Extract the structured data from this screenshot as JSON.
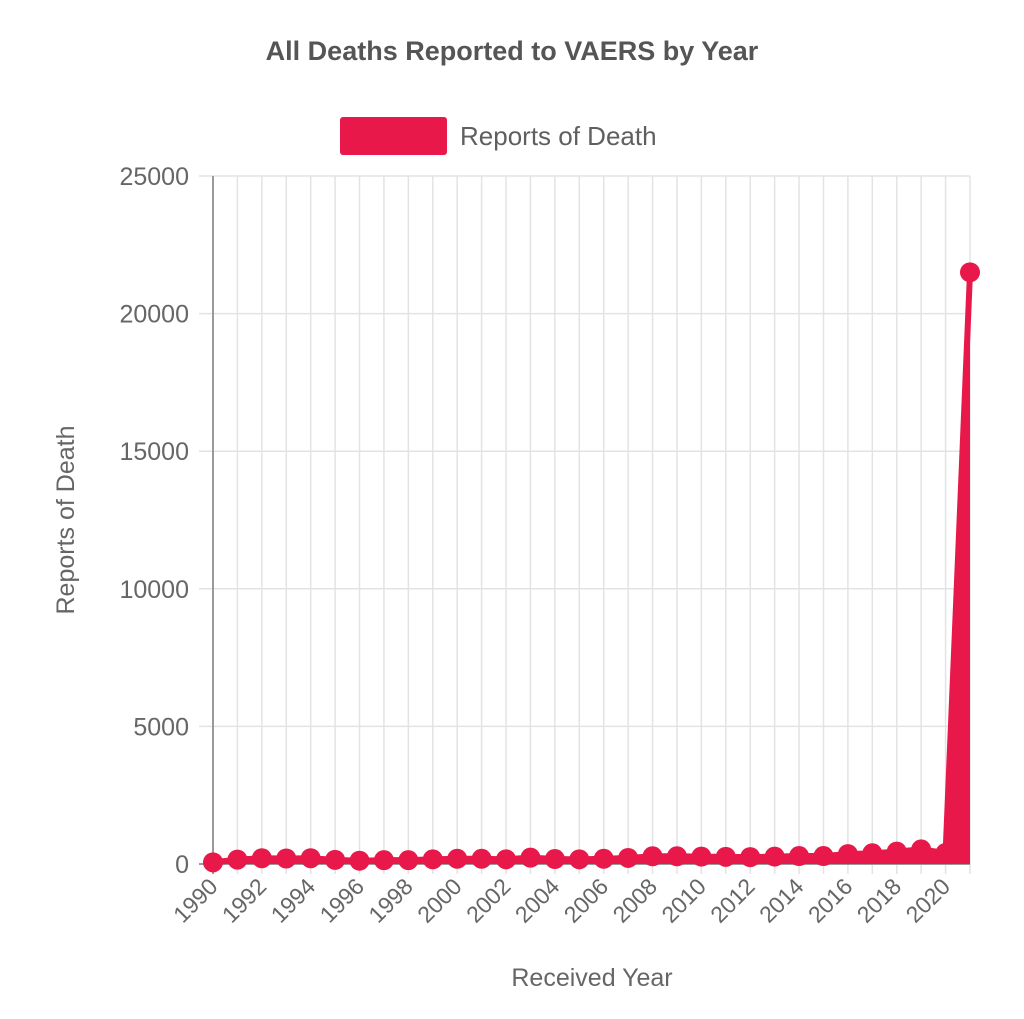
{
  "chart_data": {
    "type": "line",
    "title": "All Deaths Reported to VAERS by Year",
    "xlabel": "Received Year",
    "ylabel": "Reports of Death",
    "x": [
      1990,
      1991,
      1992,
      1993,
      1994,
      1995,
      1996,
      1997,
      1998,
      1999,
      2000,
      2001,
      2002,
      2003,
      2004,
      2005,
      2006,
      2007,
      2008,
      2009,
      2010,
      2011,
      2012,
      2013,
      2014,
      2015,
      2016,
      2017,
      2018,
      2019,
      2020,
      2021
    ],
    "xticks": [
      1990,
      1992,
      1994,
      1996,
      1998,
      2000,
      2002,
      2004,
      2006,
      2008,
      2010,
      2012,
      2014,
      2016,
      2018,
      2020
    ],
    "yticks": [
      0,
      5000,
      10000,
      15000,
      20000,
      25000
    ],
    "ylim": [
      0,
      25000
    ],
    "series": [
      {
        "name": "Reports of Death",
        "color": "#e8194a",
        "values": [
          60,
          160,
          210,
          200,
          210,
          150,
          120,
          140,
          140,
          170,
          190,
          190,
          170,
          230,
          180,
          170,
          190,
          220,
          280,
          280,
          270,
          260,
          250,
          270,
          290,
          290,
          360,
          390,
          450,
          530,
          400,
          21500
        ]
      }
    ],
    "grid": true,
    "legend": "top-center"
  }
}
